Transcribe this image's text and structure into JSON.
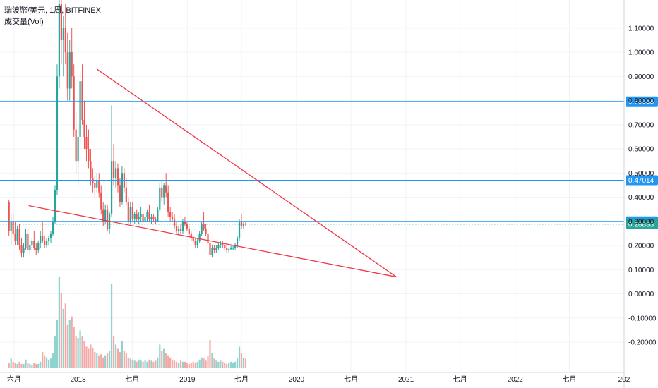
{
  "legend": {
    "symbol_line": "瑞波幣/美元, 1周, BITFINEX",
    "volume_line": "成交量(Vol)"
  },
  "colors": {
    "up": "#26a69a",
    "down": "#ef5350",
    "up_volume": "#8fd3cc",
    "down_volume": "#f5a9a7",
    "hline": "#2196f3",
    "trendline": "#f23645",
    "grid": "#f0f3fa",
    "axis_text": "#131722"
  },
  "chart_data": {
    "type": "candlestick",
    "symbol": "XRP/USD",
    "interval": "1W",
    "exchange": "BITFINEX",
    "y_axis": {
      "ylim": [
        -0.235,
        1.155
      ],
      "ticks": [
        "1.10000",
        "1.00000",
        "0.90000",
        "0.80000",
        "0.70000",
        "0.60000",
        "0.50000",
        "0.40000",
        "0.30000",
        "0.20000",
        "0.10000",
        "0.00000",
        "-0.10000",
        "-0.20000"
      ]
    },
    "x_axis": {
      "range": [
        "2017-04-15",
        "2022-12-31"
      ],
      "ticks": [
        {
          "label": "六月",
          "date": "2017-06-01"
        },
        {
          "label": "2018",
          "date": "2018-01-01"
        },
        {
          "label": "七月",
          "date": "2018-07-01"
        },
        {
          "label": "2019",
          "date": "2019-01-01"
        },
        {
          "label": "七月",
          "date": "2019-07-01"
        },
        {
          "label": "2020",
          "date": "2020-01-01"
        },
        {
          "label": "七月",
          "date": "2020-07-01"
        },
        {
          "label": "2021",
          "date": "2021-01-01"
        },
        {
          "label": "七月",
          "date": "2021-07-01"
        },
        {
          "label": "2022",
          "date": "2022-01-01"
        },
        {
          "label": "七月",
          "date": "2022-07-01"
        },
        {
          "label": "202",
          "date": "2022-12-31"
        }
      ]
    },
    "candles": {
      "start_date": "2017-05-15",
      "interval_days": 7,
      "ohlc": [
        [
          0.38,
          0.39,
          0.24,
          0.26
        ],
        [
          0.26,
          0.33,
          0.2,
          0.3
        ],
        [
          0.3,
          0.33,
          0.24,
          0.25
        ],
        [
          0.25,
          0.3,
          0.2,
          0.22
        ],
        [
          0.22,
          0.28,
          0.2,
          0.27
        ],
        [
          0.27,
          0.29,
          0.18,
          0.2
        ],
        [
          0.2,
          0.23,
          0.15,
          0.17
        ],
        [
          0.17,
          0.21,
          0.15,
          0.19
        ],
        [
          0.19,
          0.27,
          0.18,
          0.25
        ],
        [
          0.25,
          0.27,
          0.17,
          0.18
        ],
        [
          0.18,
          0.22,
          0.16,
          0.2
        ],
        [
          0.2,
          0.23,
          0.18,
          0.22
        ],
        [
          0.22,
          0.26,
          0.18,
          0.19
        ],
        [
          0.19,
          0.21,
          0.16,
          0.18
        ],
        [
          0.18,
          0.22,
          0.17,
          0.21
        ],
        [
          0.21,
          0.26,
          0.19,
          0.24
        ],
        [
          0.24,
          0.3,
          0.21,
          0.22
        ],
        [
          0.22,
          0.24,
          0.19,
          0.2
        ],
        [
          0.2,
          0.23,
          0.19,
          0.22
        ],
        [
          0.22,
          0.24,
          0.2,
          0.23
        ],
        [
          0.23,
          0.26,
          0.21,
          0.25
        ],
        [
          0.25,
          0.32,
          0.24,
          0.3
        ],
        [
          0.3,
          0.45,
          0.29,
          0.43
        ],
        [
          0.43,
          0.95,
          0.41,
          0.9
        ],
        [
          0.9,
          1.3,
          0.85,
          1.2
        ],
        [
          1.2,
          1.35,
          0.95,
          1.05
        ],
        [
          1.05,
          1.15,
          0.9,
          1.1
        ],
        [
          1.1,
          1.2,
          0.95,
          1.0
        ],
        [
          1.0,
          1.08,
          0.8,
          0.85
        ],
        [
          0.85,
          1.05,
          0.8,
          1.0
        ],
        [
          1.0,
          1.1,
          0.85,
          0.9
        ],
        [
          0.9,
          0.95,
          0.65,
          0.68
        ],
        [
          0.68,
          0.75,
          0.5,
          0.55
        ],
        [
          0.55,
          0.7,
          0.45,
          0.65
        ],
        [
          0.65,
          0.92,
          0.62,
          0.88
        ],
        [
          0.88,
          0.95,
          0.7,
          0.72
        ],
        [
          0.72,
          0.8,
          0.6,
          0.65
        ],
        [
          0.65,
          0.7,
          0.55,
          0.6
        ],
        [
          0.6,
          0.68,
          0.52,
          0.55
        ],
        [
          0.55,
          0.6,
          0.45,
          0.48
        ],
        [
          0.48,
          0.52,
          0.42,
          0.46
        ],
        [
          0.46,
          0.49,
          0.4,
          0.44
        ],
        [
          0.44,
          0.5,
          0.42,
          0.47
        ],
        [
          0.47,
          0.5,
          0.4,
          0.42
        ],
        [
          0.42,
          0.45,
          0.33,
          0.35
        ],
        [
          0.35,
          0.38,
          0.28,
          0.3
        ],
        [
          0.3,
          0.37,
          0.29,
          0.35
        ],
        [
          0.35,
          0.37,
          0.26,
          0.27
        ],
        [
          0.27,
          0.34,
          0.25,
          0.33
        ],
        [
          0.33,
          0.78,
          0.32,
          0.55
        ],
        [
          0.55,
          0.62,
          0.45,
          0.48
        ],
        [
          0.48,
          0.55,
          0.44,
          0.52
        ],
        [
          0.52,
          0.54,
          0.42,
          0.45
        ],
        [
          0.45,
          0.48,
          0.36,
          0.38
        ],
        [
          0.38,
          0.53,
          0.37,
          0.5
        ],
        [
          0.5,
          0.52,
          0.42,
          0.44
        ],
        [
          0.44,
          0.48,
          0.37,
          0.38
        ],
        [
          0.38,
          0.4,
          0.29,
          0.3
        ],
        [
          0.3,
          0.38,
          0.29,
          0.36
        ],
        [
          0.36,
          0.38,
          0.3,
          0.31
        ],
        [
          0.31,
          0.34,
          0.29,
          0.33
        ],
        [
          0.33,
          0.35,
          0.3,
          0.31
        ],
        [
          0.31,
          0.34,
          0.29,
          0.32
        ],
        [
          0.32,
          0.36,
          0.3,
          0.33
        ],
        [
          0.33,
          0.34,
          0.29,
          0.3
        ],
        [
          0.3,
          0.33,
          0.29,
          0.32
        ],
        [
          0.32,
          0.35,
          0.3,
          0.34
        ],
        [
          0.34,
          0.37,
          0.3,
          0.31
        ],
        [
          0.31,
          0.33,
          0.29,
          0.32
        ],
        [
          0.32,
          0.33,
          0.3,
          0.31
        ],
        [
          0.31,
          0.32,
          0.29,
          0.3
        ],
        [
          0.3,
          0.36,
          0.3,
          0.35
        ],
        [
          0.35,
          0.46,
          0.34,
          0.44
        ],
        [
          0.44,
          0.47,
          0.38,
          0.4
        ],
        [
          0.4,
          0.46,
          0.37,
          0.45
        ],
        [
          0.45,
          0.5,
          0.4,
          0.42
        ],
        [
          0.42,
          0.45,
          0.32,
          0.34
        ],
        [
          0.34,
          0.36,
          0.3,
          0.32
        ],
        [
          0.32,
          0.34,
          0.3,
          0.31
        ],
        [
          0.31,
          0.33,
          0.27,
          0.28
        ],
        [
          0.28,
          0.3,
          0.25,
          0.26
        ],
        [
          0.26,
          0.28,
          0.24,
          0.27
        ],
        [
          0.27,
          0.29,
          0.25,
          0.26
        ],
        [
          0.26,
          0.31,
          0.25,
          0.3
        ],
        [
          0.3,
          0.32,
          0.28,
          0.29
        ],
        [
          0.29,
          0.3,
          0.26,
          0.27
        ],
        [
          0.27,
          0.28,
          0.24,
          0.25
        ],
        [
          0.25,
          0.26,
          0.22,
          0.23
        ],
        [
          0.23,
          0.24,
          0.21,
          0.22
        ],
        [
          0.22,
          0.23,
          0.19,
          0.2
        ],
        [
          0.2,
          0.23,
          0.19,
          0.22
        ],
        [
          0.22,
          0.26,
          0.21,
          0.25
        ],
        [
          0.25,
          0.3,
          0.24,
          0.29
        ],
        [
          0.29,
          0.34,
          0.26,
          0.27
        ],
        [
          0.27,
          0.29,
          0.24,
          0.25
        ],
        [
          0.25,
          0.27,
          0.2,
          0.21
        ],
        [
          0.21,
          0.24,
          0.14,
          0.16
        ],
        [
          0.16,
          0.2,
          0.15,
          0.19
        ],
        [
          0.19,
          0.2,
          0.17,
          0.18
        ],
        [
          0.18,
          0.2,
          0.17,
          0.19
        ],
        [
          0.19,
          0.21,
          0.18,
          0.2
        ],
        [
          0.2,
          0.22,
          0.19,
          0.21
        ],
        [
          0.21,
          0.22,
          0.19,
          0.2
        ],
        [
          0.2,
          0.21,
          0.18,
          0.19
        ],
        [
          0.19,
          0.2,
          0.17,
          0.18
        ],
        [
          0.18,
          0.19,
          0.17,
          0.185
        ],
        [
          0.185,
          0.2,
          0.18,
          0.19
        ],
        [
          0.19,
          0.2,
          0.18,
          0.19
        ],
        [
          0.19,
          0.21,
          0.18,
          0.2
        ],
        [
          0.2,
          0.24,
          0.19,
          0.23
        ],
        [
          0.23,
          0.31,
          0.22,
          0.3
        ],
        [
          0.3,
          0.33,
          0.27,
          0.28
        ],
        [
          0.28,
          0.3,
          0.27,
          0.29
        ],
        [
          0.29,
          0.3,
          0.28,
          0.2883
        ]
      ],
      "volume": [
        5,
        9,
        6,
        5,
        4,
        6,
        4,
        4,
        8,
        5,
        4,
        3,
        5,
        4,
        4,
        6,
        15,
        12,
        10,
        8,
        9,
        14,
        30,
        45,
        85,
        70,
        55,
        60,
        40,
        45,
        48,
        38,
        30,
        28,
        35,
        30,
        25,
        20,
        18,
        22,
        19,
        15,
        14,
        12,
        13,
        10,
        12,
        14,
        16,
        78,
        30,
        22,
        18,
        15,
        25,
        16,
        14,
        10,
        9,
        8,
        7,
        6,
        8,
        7,
        6,
        7,
        6,
        8,
        7,
        6,
        7,
        10,
        22,
        16,
        18,
        14,
        12,
        10,
        8,
        7,
        6,
        5,
        7,
        6,
        6,
        5,
        4,
        5,
        6,
        5,
        6,
        8,
        10,
        9,
        7,
        11,
        26,
        14,
        9,
        7,
        6,
        7,
        6,
        5,
        4,
        5,
        6,
        5,
        6,
        9,
        20,
        14,
        10,
        9
      ]
    },
    "price_lines": [
      "0.79658",
      "0.47014",
      "0.30000"
    ],
    "last_price": "0.28833",
    "trendlines": [
      {
        "from": [
          "2018-03-05",
          0.93
        ],
        "to": [
          "2020-11-30",
          0.07
        ]
      },
      {
        "from": [
          "2017-07-20",
          0.365
        ],
        "to": [
          "2020-11-30",
          0.07
        ]
      }
    ]
  }
}
